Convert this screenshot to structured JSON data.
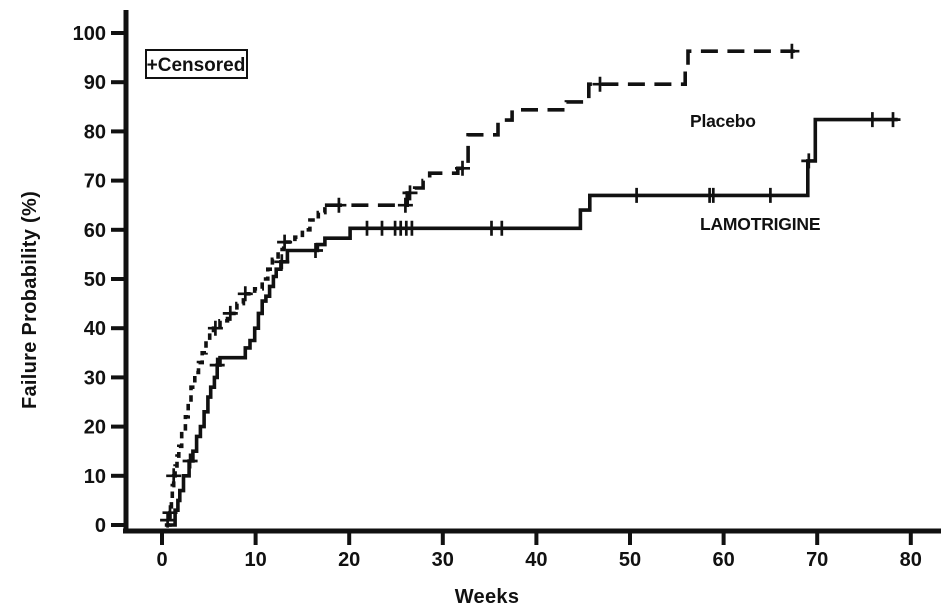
{
  "chart_data": {
    "type": "line",
    "subtype": "kaplan-meier-step",
    "title": "",
    "xlabel": "Weeks",
    "ylabel": "Failure Probability (%)",
    "xlim": [
      0,
      80
    ],
    "ylim": [
      0,
      100
    ],
    "x_ticks": [
      0,
      10,
      20,
      30,
      40,
      50,
      60,
      70,
      80
    ],
    "y_ticks": [
      0,
      10,
      20,
      30,
      40,
      50,
      60,
      70,
      80,
      90,
      100
    ],
    "grid": "off",
    "legend": {
      "text": "+Censored",
      "position": "top-left"
    },
    "series": [
      {
        "name": "Placebo",
        "style": "dashed",
        "steps": [
          [
            0.3,
            0
          ],
          [
            0.85,
            2.5
          ],
          [
            1.0,
            5
          ],
          [
            1.1,
            8
          ],
          [
            1.25,
            10
          ],
          [
            1.4,
            12
          ],
          [
            1.6,
            14
          ],
          [
            1.8,
            16
          ],
          [
            2.1,
            19
          ],
          [
            2.5,
            22
          ],
          [
            2.8,
            25
          ],
          [
            3.1,
            28
          ],
          [
            3.5,
            31
          ],
          [
            3.9,
            33
          ],
          [
            4.3,
            35
          ],
          [
            4.7,
            37
          ],
          [
            5.1,
            39
          ],
          [
            5.5,
            40
          ],
          [
            6.2,
            41.5
          ],
          [
            7.0,
            43
          ],
          [
            8.0,
            45
          ],
          [
            8.7,
            47
          ],
          [
            9.9,
            48
          ],
          [
            10.7,
            50
          ],
          [
            11.3,
            52
          ],
          [
            11.8,
            54
          ],
          [
            12.4,
            56
          ],
          [
            13.0,
            57.5
          ],
          [
            14.2,
            58.5
          ],
          [
            15.0,
            60
          ],
          [
            15.8,
            62
          ],
          [
            16.7,
            63.5
          ],
          [
            17.4,
            65
          ],
          [
            26.2,
            67.5
          ],
          [
            27.0,
            68.5
          ],
          [
            27.9,
            70
          ],
          [
            28.6,
            71.5
          ],
          [
            31.6,
            72.5
          ],
          [
            32.7,
            79.3
          ],
          [
            35.9,
            82.3
          ],
          [
            37.4,
            84.4
          ],
          [
            43.2,
            86
          ],
          [
            45.6,
            89.6
          ],
          [
            55.9,
            92.3
          ],
          [
            56.2,
            96.3
          ],
          [
            67.6,
            96.3
          ]
        ],
        "censored": [
          [
            0.85,
            2.5
          ],
          [
            1.25,
            10
          ],
          [
            5.7,
            40
          ],
          [
            7.3,
            43
          ],
          [
            8.9,
            47
          ],
          [
            13.1,
            57.5
          ],
          [
            18.9,
            65
          ],
          [
            26.0,
            65
          ],
          [
            26.5,
            67.5
          ],
          [
            32.1,
            72.5
          ],
          [
            46.8,
            89.6
          ],
          [
            67.3,
            96.3
          ]
        ]
      },
      {
        "name": "LAMOTRIGINE",
        "style": "solid",
        "steps": [
          [
            0.6,
            0
          ],
          [
            1.4,
            3
          ],
          [
            1.7,
            5
          ],
          [
            1.9,
            7
          ],
          [
            2.3,
            10
          ],
          [
            2.9,
            13
          ],
          [
            3.3,
            15
          ],
          [
            3.7,
            18
          ],
          [
            4.1,
            20
          ],
          [
            4.5,
            23
          ],
          [
            4.9,
            26
          ],
          [
            5.2,
            28
          ],
          [
            5.6,
            30
          ],
          [
            5.9,
            32.5
          ],
          [
            6.2,
            34
          ],
          [
            8.9,
            36
          ],
          [
            9.4,
            37.5
          ],
          [
            9.9,
            40
          ],
          [
            10.3,
            43
          ],
          [
            10.7,
            45.5
          ],
          [
            11.1,
            46.5
          ],
          [
            11.5,
            48.5
          ],
          [
            11.9,
            50.5
          ],
          [
            12.2,
            52
          ],
          [
            12.7,
            53.5
          ],
          [
            13.4,
            55.8
          ],
          [
            16.6,
            57
          ],
          [
            17.4,
            58.3
          ],
          [
            20.1,
            60.3
          ],
          [
            44.7,
            64
          ],
          [
            45.7,
            67
          ],
          [
            69.0,
            74
          ],
          [
            69.8,
            82.4
          ],
          [
            78.6,
            82.4
          ]
        ],
        "censored": [
          [
            0.6,
            1
          ],
          [
            3.0,
            13
          ],
          [
            5.9,
            32.5
          ],
          [
            12.8,
            53.5
          ],
          [
            16.4,
            55.8
          ],
          [
            21.9,
            60.3
          ],
          [
            23.5,
            60.3
          ],
          [
            24.9,
            60.3
          ],
          [
            25.5,
            60.3
          ],
          [
            26.1,
            60.3
          ],
          [
            26.7,
            60.3
          ],
          [
            35.2,
            60.3
          ],
          [
            36.3,
            60.3
          ],
          [
            50.7,
            67
          ],
          [
            58.5,
            67
          ],
          [
            58.9,
            67
          ],
          [
            65.0,
            67
          ],
          [
            69.1,
            74
          ],
          [
            75.9,
            82.4
          ],
          [
            78.1,
            82.4
          ]
        ]
      }
    ]
  }
}
